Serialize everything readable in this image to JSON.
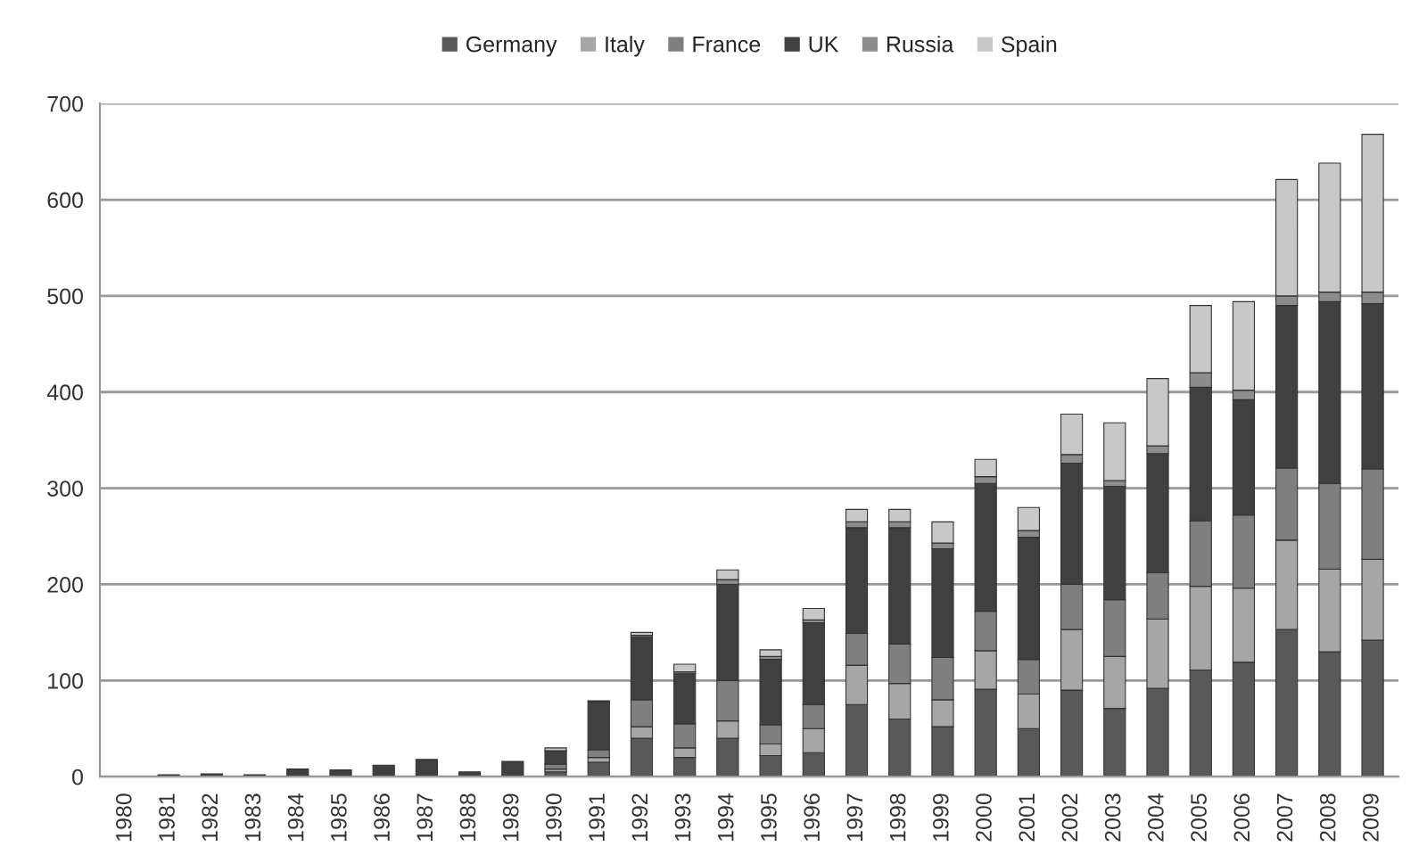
{
  "chart_data": {
    "type": "bar",
    "stacked": true,
    "categories": [
      "1980",
      "1981",
      "1982",
      "1983",
      "1984",
      "1985",
      "1986",
      "1987",
      "1988",
      "1989",
      "1990",
      "1991",
      "1992",
      "1993",
      "1994",
      "1995",
      "1996",
      "1997",
      "1998",
      "1999",
      "2000",
      "2001",
      "2002",
      "2003",
      "2004",
      "2005",
      "2006",
      "2007",
      "2008",
      "2009"
    ],
    "series": [
      {
        "name": "Germany",
        "color": "#595959",
        "values": [
          0,
          0,
          0,
          0,
          0,
          0,
          0,
          0,
          0,
          0,
          5,
          15,
          40,
          20,
          40,
          22,
          25,
          75,
          60,
          52,
          91,
          50,
          90,
          71,
          92,
          111,
          119,
          153,
          130,
          142
        ]
      },
      {
        "name": "Italy",
        "color": "#a6a6a6",
        "values": [
          0,
          0,
          0,
          0,
          0,
          0,
          0,
          0,
          0,
          0,
          3,
          5,
          12,
          10,
          18,
          12,
          25,
          41,
          37,
          28,
          40,
          36,
          63,
          54,
          72,
          87,
          77,
          93,
          86,
          84
        ]
      },
      {
        "name": "France",
        "color": "#7f7f7f",
        "values": [
          0,
          0,
          0,
          0,
          0,
          0,
          0,
          0,
          0,
          0,
          5,
          8,
          28,
          25,
          42,
          20,
          25,
          33,
          41,
          44,
          41,
          36,
          47,
          59,
          48,
          68,
          76,
          75,
          89,
          94
        ]
      },
      {
        "name": "UK",
        "color": "#404040",
        "values": [
          0,
          2,
          3,
          2,
          8,
          7,
          12,
          18,
          5,
          16,
          14,
          50,
          65,
          52,
          100,
          68,
          85,
          110,
          121,
          113,
          133,
          127,
          126,
          118,
          124,
          139,
          120,
          169,
          189,
          172
        ]
      },
      {
        "name": "Russia",
        "color": "#8c8c8c",
        "values": [
          0,
          0,
          0,
          0,
          0,
          0,
          0,
          0,
          0,
          0,
          0,
          1,
          2,
          2,
          5,
          3,
          3,
          6,
          6,
          6,
          7,
          7,
          9,
          6,
          8,
          15,
          10,
          10,
          10,
          12
        ]
      },
      {
        "name": "Spain",
        "color": "#c8c8c8",
        "values": [
          0,
          0,
          0,
          0,
          0,
          0,
          0,
          0,
          0,
          0,
          3,
          0,
          3,
          8,
          10,
          7,
          12,
          13,
          13,
          22,
          18,
          24,
          42,
          60,
          70,
          70,
          92,
          121,
          134,
          164
        ]
      }
    ],
    "ylim": [
      0,
      700
    ],
    "yticks": [
      0,
      100,
      200,
      300,
      400,
      500,
      600,
      700
    ],
    "grid": "y",
    "legend": "top"
  }
}
